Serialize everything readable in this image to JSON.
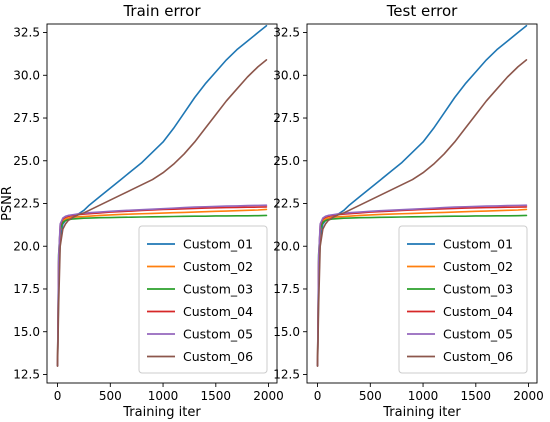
{
  "chart_data": [
    {
      "type": "line",
      "title": "Train error",
      "xlabel": "Training iter",
      "ylabel": "PSNR",
      "xlim": [
        -100,
        2080
      ],
      "ylim": [
        12.0,
        33.0
      ],
      "xticks": [
        0,
        500,
        1000,
        1500,
        2000
      ],
      "yticks": [
        12.5,
        15.0,
        17.5,
        20.0,
        22.5,
        25.0,
        27.5,
        30.0,
        32.5
      ],
      "ytick_labels": [
        "12.5",
        "15.0",
        "17.5",
        "20.0",
        "22.5",
        "25.0",
        "27.5",
        "30.0",
        "32.5"
      ],
      "legend_position": "lower-right",
      "grid": false,
      "x": [
        0,
        10,
        25,
        50,
        75,
        100,
        150,
        200,
        250,
        300,
        400,
        500,
        600,
        700,
        800,
        900,
        1000,
        1100,
        1200,
        1300,
        1400,
        1500,
        1600,
        1700,
        1800,
        1900,
        1980
      ],
      "series": [
        {
          "name": "Custom_01",
          "color": "#1f77b4",
          "values": [
            13.0,
            17.5,
            20.5,
            21.3,
            21.5,
            21.6,
            21.7,
            21.9,
            22.1,
            22.4,
            22.9,
            23.4,
            23.9,
            24.4,
            24.9,
            25.5,
            26.1,
            26.9,
            27.8,
            28.7,
            29.5,
            30.2,
            30.9,
            31.5,
            32.0,
            32.5,
            32.9
          ]
        },
        {
          "name": "Custom_02",
          "color": "#ff7f0e",
          "values": [
            13.0,
            18.5,
            20.9,
            21.5,
            21.6,
            21.65,
            21.7,
            21.72,
            21.74,
            21.76,
            21.8,
            21.83,
            21.86,
            21.88,
            21.9,
            21.92,
            21.94,
            21.96,
            21.98,
            22.0,
            22.02,
            22.04,
            22.06,
            22.08,
            22.1,
            22.12,
            22.15
          ]
        },
        {
          "name": "Custom_03",
          "color": "#2ca02c",
          "values": [
            13.0,
            19.5,
            21.0,
            21.4,
            21.5,
            21.55,
            21.6,
            21.62,
            21.64,
            21.65,
            21.67,
            21.68,
            21.69,
            21.7,
            21.71,
            21.72,
            21.73,
            21.74,
            21.75,
            21.76,
            21.76,
            21.77,
            21.77,
            21.78,
            21.78,
            21.79,
            21.8
          ]
        },
        {
          "name": "Custom_04",
          "color": "#d62728",
          "values": [
            13.0,
            19.0,
            21.2,
            21.6,
            21.7,
            21.75,
            21.8,
            21.85,
            21.88,
            21.9,
            21.95,
            22.0,
            22.03,
            22.06,
            22.09,
            22.12,
            22.15,
            22.17,
            22.19,
            22.21,
            22.23,
            22.25,
            22.26,
            22.27,
            22.28,
            22.29,
            22.3
          ]
        },
        {
          "name": "Custom_05",
          "color": "#9467bd",
          "values": [
            13.0,
            19.3,
            21.3,
            21.65,
            21.75,
            21.8,
            21.85,
            21.9,
            21.93,
            21.96,
            22.0,
            22.04,
            22.08,
            22.11,
            22.14,
            22.17,
            22.2,
            22.23,
            22.26,
            22.29,
            22.31,
            22.33,
            22.35,
            22.36,
            22.38,
            22.39,
            22.4
          ]
        },
        {
          "name": "Custom_06",
          "color": "#8c564b",
          "values": [
            13.0,
            16.5,
            20.0,
            21.0,
            21.3,
            21.5,
            21.7,
            21.85,
            21.95,
            22.1,
            22.4,
            22.7,
            23.0,
            23.3,
            23.6,
            23.9,
            24.3,
            24.8,
            25.4,
            26.1,
            26.9,
            27.7,
            28.5,
            29.2,
            29.9,
            30.5,
            30.9
          ]
        }
      ]
    },
    {
      "type": "line",
      "title": "Test error",
      "xlabel": "Training iter",
      "ylabel": "",
      "xlim": [
        -100,
        2080
      ],
      "ylim": [
        12.0,
        33.0
      ],
      "xticks": [
        0,
        500,
        1000,
        1500,
        2000
      ],
      "yticks": [
        12.5,
        15.0,
        17.5,
        20.0,
        22.5,
        25.0,
        27.5,
        30.0,
        32.5
      ],
      "ytick_labels": [
        "12.5",
        "15.0",
        "17.5",
        "20.0",
        "22.5",
        "25.0",
        "27.5",
        "30.0",
        "32.5"
      ],
      "legend_position": "lower-right",
      "grid": false,
      "x": [
        0,
        10,
        25,
        50,
        75,
        100,
        150,
        200,
        250,
        300,
        400,
        500,
        600,
        700,
        800,
        900,
        1000,
        1100,
        1200,
        1300,
        1400,
        1500,
        1600,
        1700,
        1800,
        1900,
        1980
      ],
      "series": [
        {
          "name": "Custom_01",
          "color": "#1f77b4",
          "values": [
            13.0,
            17.5,
            20.5,
            21.3,
            21.5,
            21.6,
            21.7,
            21.9,
            22.1,
            22.4,
            22.9,
            23.4,
            23.9,
            24.4,
            24.9,
            25.5,
            26.1,
            26.9,
            27.8,
            28.7,
            29.5,
            30.2,
            30.9,
            31.5,
            32.0,
            32.5,
            32.9
          ]
        },
        {
          "name": "Custom_02",
          "color": "#ff7f0e",
          "values": [
            13.0,
            18.5,
            20.9,
            21.5,
            21.6,
            21.65,
            21.7,
            21.72,
            21.74,
            21.76,
            21.8,
            21.83,
            21.86,
            21.88,
            21.9,
            21.92,
            21.94,
            21.96,
            21.98,
            22.0,
            22.02,
            22.04,
            22.06,
            22.08,
            22.1,
            22.12,
            22.15
          ]
        },
        {
          "name": "Custom_03",
          "color": "#2ca02c",
          "values": [
            13.0,
            19.5,
            21.0,
            21.4,
            21.5,
            21.55,
            21.6,
            21.62,
            21.64,
            21.65,
            21.67,
            21.68,
            21.69,
            21.7,
            21.71,
            21.72,
            21.73,
            21.74,
            21.75,
            21.76,
            21.76,
            21.77,
            21.77,
            21.78,
            21.78,
            21.79,
            21.8
          ]
        },
        {
          "name": "Custom_04",
          "color": "#d62728",
          "values": [
            13.0,
            19.0,
            21.2,
            21.6,
            21.7,
            21.75,
            21.8,
            21.85,
            21.88,
            21.9,
            21.95,
            22.0,
            22.03,
            22.06,
            22.09,
            22.12,
            22.15,
            22.17,
            22.19,
            22.21,
            22.23,
            22.25,
            22.26,
            22.27,
            22.28,
            22.29,
            22.3
          ]
        },
        {
          "name": "Custom_05",
          "color": "#9467bd",
          "values": [
            13.0,
            19.3,
            21.3,
            21.65,
            21.75,
            21.8,
            21.85,
            21.9,
            21.93,
            21.96,
            22.0,
            22.04,
            22.08,
            22.11,
            22.14,
            22.17,
            22.2,
            22.23,
            22.26,
            22.29,
            22.31,
            22.33,
            22.35,
            22.36,
            22.38,
            22.39,
            22.4
          ]
        },
        {
          "name": "Custom_06",
          "color": "#8c564b",
          "values": [
            13.0,
            16.5,
            20.0,
            21.0,
            21.3,
            21.5,
            21.7,
            21.85,
            21.95,
            22.1,
            22.4,
            22.7,
            23.0,
            23.3,
            23.6,
            23.9,
            24.3,
            24.8,
            25.4,
            26.1,
            26.9,
            27.7,
            28.5,
            29.2,
            29.9,
            30.5,
            30.9
          ]
        }
      ]
    }
  ]
}
